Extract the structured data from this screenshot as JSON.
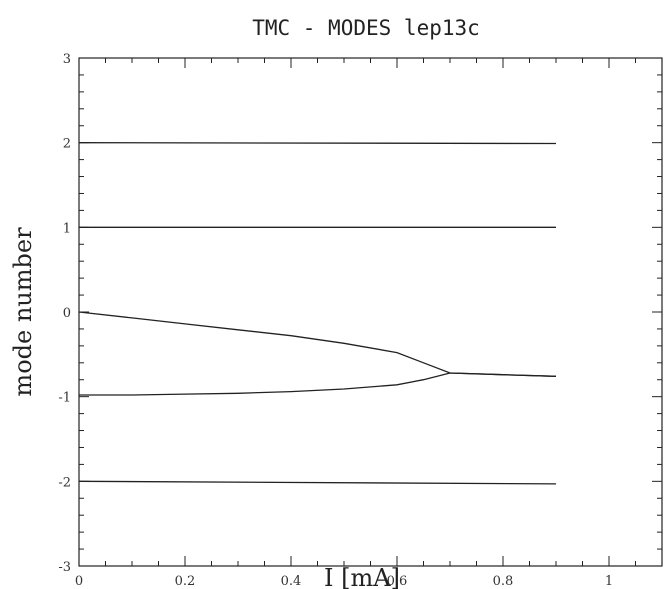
{
  "chart_data": {
    "type": "line",
    "title": "TMC - MODES lep13c",
    "xlabel": "I [mA]",
    "ylabel": "mode number",
    "xlim": [
      0,
      1.1
    ],
    "ylim": [
      -3,
      3
    ],
    "x_ticks": [
      "0",
      "0.2",
      "0.4",
      "0.6",
      "0.8",
      "1"
    ],
    "y_ticks": [
      "3",
      "2",
      "1",
      "0",
      "-1",
      "-2",
      "-3"
    ],
    "grid": false,
    "series": [
      {
        "x": [
          0,
          0.9
        ],
        "y": [
          2.0,
          1.99
        ]
      },
      {
        "x": [
          0,
          0.9
        ],
        "y": [
          1.0,
          1.0
        ]
      },
      {
        "x": [
          0,
          0.1,
          0.2,
          0.3,
          0.4,
          0.5,
          0.6,
          0.65,
          0.7,
          0.8,
          0.9
        ],
        "y": [
          0.0,
          -0.07,
          -0.14,
          -0.21,
          -0.28,
          -0.37,
          -0.48,
          -0.6,
          -0.72,
          -0.74,
          -0.76
        ]
      },
      {
        "x": [
          0,
          0.1,
          0.2,
          0.3,
          0.4,
          0.5,
          0.6,
          0.65,
          0.7,
          0.8,
          0.9
        ],
        "y": [
          -0.98,
          -0.98,
          -0.97,
          -0.96,
          -0.94,
          -0.91,
          -0.86,
          -0.8,
          -0.72,
          -0.74,
          -0.76
        ]
      },
      {
        "x": [
          0,
          0.9
        ],
        "y": [
          -2.0,
          -2.03
        ]
      }
    ]
  }
}
